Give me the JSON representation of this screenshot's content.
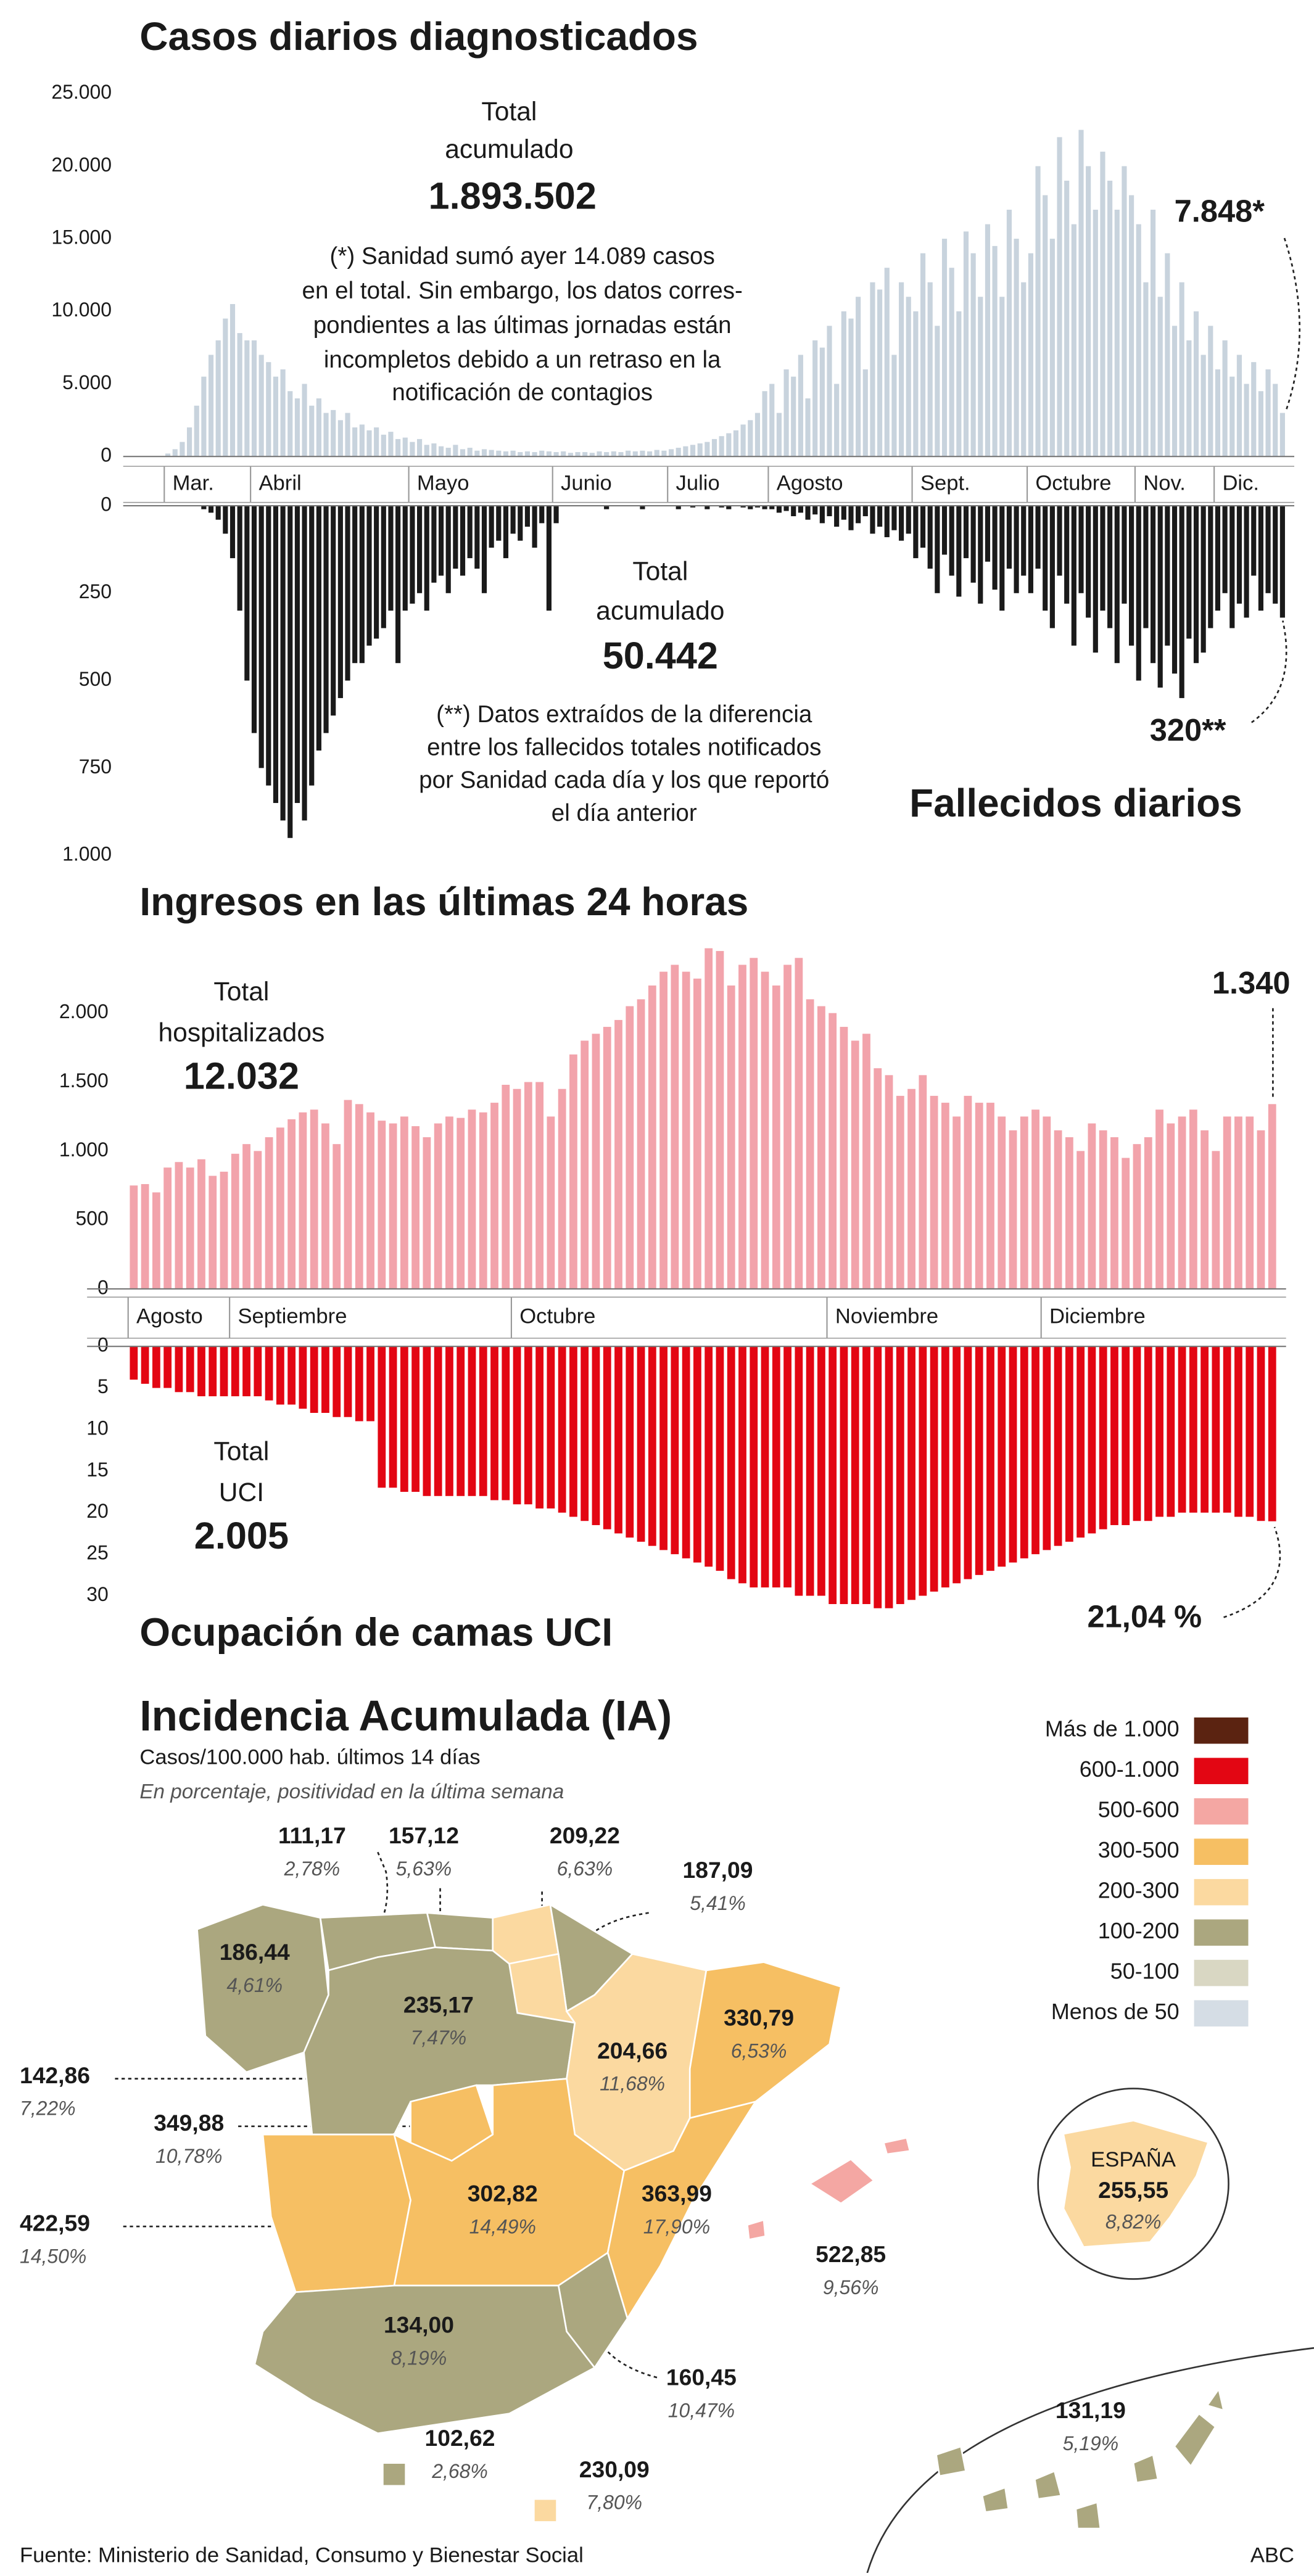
{
  "chart_data": [
    {
      "type": "bar",
      "title": "Casos diarios diagnosticados",
      "total_label": [
        "Total",
        "acumulado"
      ],
      "total": "1.893.502",
      "note": [
        "(*) Sanidad sumó ayer 14.089 casos",
        "en el total. Sin embargo, los datos corres-",
        "pondientes a las últimas jornadas están",
        "incompletos debido a un retraso en la",
        "notificación de contagios"
      ],
      "annotation": "7.848*",
      "color": "#c8d3dd",
      "categories": [
        "Mar.",
        "Abril",
        "Mayo",
        "Junio",
        "Julio",
        "Agosto",
        "Sept.",
        "Octubre",
        "Nov.",
        "Dic."
      ],
      "values": [
        [
          200,
          500,
          1000,
          2000,
          3500,
          5500,
          7000,
          8000,
          9500,
          10500,
          8500,
          8000
        ],
        [
          8000,
          7000,
          6500,
          5500,
          6000,
          4500,
          4000,
          5000,
          3500,
          4000,
          3000,
          3200,
          2500,
          3000,
          2000,
          2200,
          1800,
          2000,
          1500,
          1700,
          1200,
          1300
        ],
        [
          1000,
          1200,
          800,
          900,
          700,
          600,
          800,
          500,
          600,
          400,
          500,
          450,
          400,
          350,
          400,
          300,
          350,
          300,
          400,
          350
        ],
        [
          300,
          350,
          250,
          300,
          300,
          250,
          350,
          300,
          350,
          300,
          400,
          350,
          400,
          350,
          450,
          400
        ],
        [
          500,
          600,
          700,
          800,
          900,
          1000,
          1200,
          1400,
          1600,
          1800,
          2200,
          2500,
          3000,
          4500
        ],
        [
          5000,
          3000,
          6000,
          5500,
          7000,
          4000,
          8000,
          7500,
          9000,
          5000,
          10000,
          9500,
          11000,
          6000,
          12000,
          11500,
          13000,
          7000,
          12000,
          11000
        ],
        [
          10000,
          14000,
          12000,
          9000,
          15000,
          13000,
          10000,
          15500,
          14000,
          11000,
          16000,
          14500,
          11000,
          17000,
          15000,
          12000
        ],
        [
          14000,
          20000,
          18000,
          15000,
          22000,
          19000,
          16000,
          22500,
          20000,
          17000,
          21000,
          19000,
          17000,
          20000,
          18000
        ],
        [
          16000,
          12000,
          17000,
          11000,
          14000,
          9000,
          12000,
          8000,
          10000,
          7000,
          9000
        ],
        [
          6000,
          8000,
          5500,
          7000,
          5000,
          6500,
          4500,
          6000,
          5000,
          3000
        ]
      ],
      "ylim": [
        0,
        25000
      ],
      "yticks": [
        0,
        {
          "value": 5000,
          "label": "5.000"
        },
        {
          "value": 10000,
          "label": "10.000"
        },
        {
          "value": 15000,
          "label": "15.000"
        },
        {
          "value": 20000,
          "label": "20.000"
        },
        {
          "value": 25000,
          "label": "25.000"
        }
      ]
    },
    {
      "type": "bar",
      "title": "Fallecidos diarios",
      "inverted": true,
      "total_label": [
        "Total",
        "acumulado"
      ],
      "total": "50.442",
      "note": [
        "(**) Datos extraídos de la diferencia",
        "entre los fallecidos totales notificados",
        "por Sanidad cada día y los que reportó",
        "el día anterior"
      ],
      "annotation": "320**",
      "color": "#1a1a1a",
      "values": [
        [
          0,
          0,
          0,
          0,
          0,
          10,
          20,
          40,
          80,
          150,
          300,
          500
        ],
        [
          650,
          750,
          800,
          850,
          900,
          950,
          850,
          900,
          800,
          700,
          650,
          600,
          550,
          500,
          450,
          450,
          400,
          380,
          350,
          300,
          450,
          300
        ],
        [
          280,
          250,
          300,
          220,
          200,
          250,
          180,
          200,
          150,
          180,
          250,
          120,
          100,
          150,
          80,
          100,
          60,
          120,
          50,
          300
        ],
        [
          50,
          0,
          0,
          0,
          0,
          0,
          0,
          10,
          0,
          0,
          0,
          0,
          10,
          0,
          0,
          0
        ],
        [
          0,
          10,
          0,
          5,
          0,
          10,
          0,
          5,
          10,
          0,
          5,
          10,
          5,
          10
        ],
        [
          10,
          20,
          15,
          30,
          20,
          40,
          25,
          50,
          30,
          60,
          40,
          70,
          50,
          30,
          80,
          60,
          90,
          70,
          100,
          80
        ],
        [
          150,
          120,
          180,
          250,
          140,
          200,
          260,
          150,
          220,
          280,
          160,
          240,
          300,
          180,
          250,
          200
        ],
        [
          250,
          180,
          300,
          350,
          200,
          280,
          400,
          250,
          320,
          420,
          300,
          350,
          450,
          280,
          400
        ],
        [
          500,
          350,
          450,
          520,
          400,
          480,
          550,
          380,
          450,
          420,
          350
        ],
        [
          300,
          250,
          350,
          280,
          320,
          200,
          300,
          250,
          280,
          320
        ]
      ],
      "ylim": [
        0,
        1000
      ],
      "yticks": [
        0,
        250,
        500,
        750,
        {
          "value": 1000,
          "label": "1.000"
        }
      ]
    },
    {
      "type": "bar",
      "title": "Ingresos en las últimas 24 horas",
      "total_label": [
        "Total",
        "hospitalizados"
      ],
      "total": "12.032",
      "annotation": "1.340",
      "color": "#f2a3ab",
      "categories": [
        "Agosto",
        "Septiembre",
        "Octubre",
        "Noviembre",
        "Diciembre"
      ],
      "values": [
        [
          750,
          760,
          700,
          880,
          920,
          880,
          940,
          820,
          850
        ],
        [
          980,
          1050,
          1000,
          1100,
          1170,
          1230,
          1280,
          1300,
          1200,
          1050,
          1370,
          1340,
          1280,
          1220,
          1200,
          1250,
          1180,
          1100,
          1200,
          1250,
          1240,
          1300,
          1280,
          1350,
          1480
        ],
        [
          1450,
          1500,
          1500,
          1250,
          1450,
          1700,
          1800,
          1850,
          1900,
          1950,
          2050,
          2100,
          2200,
          2300,
          2350,
          2300,
          2250,
          2470,
          2450,
          2200,
          2350,
          2400,
          2300,
          2200,
          2350,
          2400,
          2100,
          2050
        ],
        [
          2000,
          1900,
          1800,
          1850,
          1600,
          1550,
          1400,
          1450,
          1550,
          1400,
          1350,
          1250,
          1400,
          1350,
          1350,
          1250,
          1150,
          1250,
          1300
        ],
        [
          1250,
          1150,
          1100,
          1000,
          1200,
          1150,
          1100,
          950,
          1050,
          1100,
          1300,
          1200,
          1250,
          1300,
          1150,
          1000,
          1250,
          1250,
          1250,
          1150,
          1340
        ]
      ],
      "ylim": [
        0,
        2500
      ],
      "yticks": [
        0,
        500,
        {
          "value": 1000,
          "label": "1.000"
        },
        {
          "value": 1500,
          "label": "1.500"
        },
        {
          "value": 2000,
          "label": "2.000"
        }
      ]
    },
    {
      "type": "bar",
      "title": "Ocupación de camas UCI",
      "inverted": true,
      "total_label": [
        "Total",
        "UCI"
      ],
      "total": "2.005",
      "annotation": "21,04 %",
      "color": "#e30613",
      "values": [
        [
          4,
          4.5,
          5,
          5,
          5.5,
          5.5,
          6,
          6,
          6
        ],
        [
          6,
          6,
          6,
          6.5,
          7,
          7,
          7.5,
          8,
          8,
          8.5,
          8.5,
          9,
          9,
          17,
          17,
          17.5,
          17.5,
          18,
          18,
          18,
          18,
          18,
          18,
          18.5,
          18.5
        ],
        [
          19,
          19,
          19.5,
          19.5,
          20,
          20.5,
          21,
          21.5,
          22,
          22.5,
          23,
          23.5,
          24,
          24.5,
          25,
          25.5,
          26,
          26.5,
          27,
          28,
          28.5,
          29,
          29,
          29,
          29,
          30,
          30,
          30
        ],
        [
          31,
          31,
          31,
          31,
          31.5,
          31.5,
          31,
          30.5,
          30,
          29.5,
          29,
          28.5,
          28,
          27.5,
          27,
          26.5,
          26,
          25.5,
          25
        ],
        [
          24.5,
          24,
          23.5,
          23,
          22.5,
          22,
          21.5,
          21.5,
          21,
          21,
          20.5,
          20.5,
          20,
          20,
          20,
          20,
          20,
          20.5,
          20.5,
          21,
          21.04
        ]
      ],
      "ylim": [
        0,
        32
      ],
      "yticks": [
        0,
        5,
        10,
        15,
        20,
        25,
        30
      ]
    },
    {
      "type": "map",
      "title": "Incidencia Acumulada (IA)",
      "subtitle": "Casos/100.000 hab. últimos 14 días",
      "note": "En porcentaje, positividad en la última semana",
      "legend": [
        {
          "label": "Más de 1.000",
          "color": "#5b2311"
        },
        {
          "label": "600-1.000",
          "color": "#e30613"
        },
        {
          "label": "500-600",
          "color": "#f4a7a3"
        },
        {
          "label": "300-500",
          "color": "#f6bf63"
        },
        {
          "label": "200-300",
          "color": "#fbd9a0"
        },
        {
          "label": "100-200",
          "color": "#aba77f"
        },
        {
          "label": "50-100",
          "color": "#d9d7c3"
        },
        {
          "label": "Menos de 50",
          "color": "#d5dde5"
        }
      ],
      "regions": [
        {
          "value": 186.44,
          "label": "186,44",
          "positivity": "4,61%",
          "color": "#aba77f"
        },
        {
          "value": 111.17,
          "label": "111,17",
          "positivity": "2,78%",
          "color": "#aba77f"
        },
        {
          "value": 157.12,
          "label": "157,12",
          "positivity": "5,63%",
          "color": "#aba77f"
        },
        {
          "value": 209.22,
          "label": "209,22",
          "positivity": "6,63%",
          "color": "#fbd9a0"
        },
        {
          "value": 187.09,
          "label": "187,09",
          "positivity": "5,41%",
          "color": "#aba77f"
        },
        {
          "value": 235.17,
          "label": "235,17",
          "positivity": "7,47%",
          "color": "#fbd9a0"
        },
        {
          "value": 142.86,
          "label": "142,86",
          "positivity": "7,22%",
          "color": "#aba77f"
        },
        {
          "value": 349.88,
          "label": "349,88",
          "positivity": "10,78%",
          "color": "#f6bf63"
        },
        {
          "value": 204.66,
          "label": "204,66",
          "positivity": "11,68%",
          "color": "#fbd9a0"
        },
        {
          "value": 330.79,
          "label": "330,79",
          "positivity": "6,53%",
          "color": "#f6bf63"
        },
        {
          "value": 422.59,
          "label": "422,59",
          "positivity": "14,50%",
          "color": "#f6bf63"
        },
        {
          "value": 302.82,
          "label": "302,82",
          "positivity": "14,49%",
          "color": "#f6bf63"
        },
        {
          "value": 363.99,
          "label": "363,99",
          "positivity": "17,90%",
          "color": "#f6bf63"
        },
        {
          "value": 160.45,
          "label": "160,45",
          "positivity": "10,47%",
          "color": "#aba77f"
        },
        {
          "value": 134.0,
          "label": "134,00",
          "positivity": "8,19%",
          "color": "#aba77f"
        },
        {
          "value": 522.85,
          "label": "522,85",
          "positivity": "9,56%",
          "color": "#f4a7a3"
        },
        {
          "value": 131.19,
          "label": "131,19",
          "positivity": "5,19%",
          "color": "#aba77f"
        },
        {
          "value": 102.62,
          "label": "102,62",
          "positivity": "2,68%",
          "color": "#aba77f"
        },
        {
          "value": 230.09,
          "label": "230,09",
          "positivity": "7,80%",
          "color": "#fbd9a0"
        }
      ],
      "national": {
        "name": "ESPAÑA",
        "value": 255.55,
        "label": "255,55",
        "positivity": "8,82%",
        "color": "#fbd9a0"
      }
    }
  ],
  "footer": {
    "source": "Fuente: Ministerio de Sanidad, Consumo y Bienestar Social",
    "credit": "ABC"
  }
}
